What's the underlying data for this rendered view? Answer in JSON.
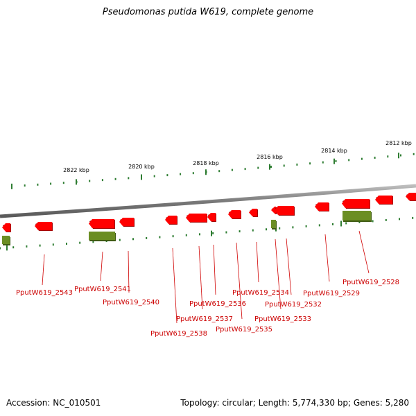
{
  "title": "Pseudomonas putida W619, complete genome",
  "footer": {
    "accession": "Accession: NC_010501",
    "stats": "Topology: circular; Length: 5,774,330 bp; Genes: 5,280"
  },
  "colors": {
    "gene_forward": "#ff0000",
    "gene_reverse_rna": "#6b8e23",
    "label": "#cc0000",
    "leader": "#d00000",
    "tick": "#2e7d32",
    "backbone": "#808080"
  },
  "scale_ticks": [
    {
      "label": "2822 kbp"
    },
    {
      "label": "2820 kbp"
    },
    {
      "label": "2818 kbp"
    },
    {
      "label": "2816 kbp"
    },
    {
      "label": "2814 kbp"
    },
    {
      "label": "2812 kbp"
    }
  ],
  "gene_labels": [
    "PputW619_2543",
    "PputW619_2541",
    "PputW619_2540",
    "PputW619_2538",
    "PputW619_2537",
    "PputW619_2536",
    "PputW619_2535",
    "PputW619_2534",
    "PputW619_2533",
    "PputW619_2532",
    "PputW619_2529",
    "PputW619_2528"
  ]
}
